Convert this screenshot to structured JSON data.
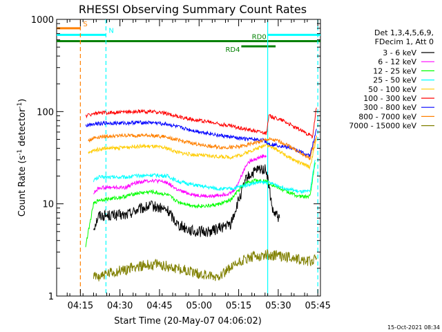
{
  "chart_data": {
    "type": "line",
    "title": "RHESSI Observing Summary Count Rates",
    "xlabel": "Start Time (20-May-07 04:06:02)",
    "ylabel_main": "Count Rate (s",
    "ylabel_sup1": "-1",
    "ylabel_mid": " detector",
    "ylabel_sup2": "-1",
    "ylabel_end": ")",
    "yscale": "log",
    "ylim": [
      1,
      1000
    ],
    "xlim_minutes": [
      0,
      100
    ],
    "y_ticks": [
      {
        "value": 1,
        "label": "1"
      },
      {
        "value": 10,
        "label": "10"
      },
      {
        "value": 100,
        "label": "100"
      },
      {
        "value": 1000,
        "label": "1000"
      }
    ],
    "x_ticks": [
      {
        "minute": 9,
        "label": "04:15"
      },
      {
        "minute": 24,
        "label": "04:30"
      },
      {
        "minute": 39,
        "label": "04:45"
      },
      {
        "minute": 54,
        "label": "05:00"
      },
      {
        "minute": 69,
        "label": "05:15"
      },
      {
        "minute": 84,
        "label": "05:30"
      },
      {
        "minute": 99,
        "label": "05:45"
      }
    ],
    "legend_header": [
      "Det 1,3,4,5,6,9,",
      "FDecim 1, Att 0"
    ],
    "legend_position": "right",
    "series": [
      {
        "name": "3 - 6 keV",
        "color": "#000000",
        "x": [
          14,
          16,
          22,
          26,
          30,
          36,
          42,
          46,
          52,
          58,
          62,
          66,
          68,
          70,
          72,
          74,
          76,
          78,
          79.5,
          82,
          84.5
        ],
        "y": [
          5.5,
          7.5,
          7.5,
          7.5,
          8.5,
          9.5,
          8.5,
          6,
          5,
          5,
          5.5,
          6,
          9,
          13,
          19,
          21,
          23,
          24,
          23,
          8,
          7
        ]
      },
      {
        "name": "6 - 12 keV",
        "color": "#ff00ff",
        "x": [
          14,
          16,
          22,
          26,
          30,
          36,
          42,
          46,
          52,
          58,
          62,
          66,
          68,
          70,
          72,
          74,
          76,
          78,
          79.5
        ],
        "y": [
          13,
          15,
          15,
          15,
          17,
          18,
          17,
          14,
          12.5,
          12,
          12.5,
          13,
          15,
          20,
          27,
          30,
          31,
          33,
          33
        ]
      },
      {
        "name": "12 - 25 keV",
        "color": "#00ff00",
        "x": [
          11,
          14,
          16,
          22,
          26,
          30,
          36,
          42,
          46,
          52,
          58,
          62,
          66,
          68,
          70,
          72,
          74,
          76,
          78,
          79.5,
          82,
          86,
          92,
          96,
          98
        ],
        "y": [
          3.5,
          10,
          11,
          11.5,
          12,
          13,
          13.5,
          12.5,
          10.5,
          9.5,
          9.5,
          10,
          11,
          13,
          15,
          17,
          17.5,
          18,
          18,
          17.5,
          16,
          14,
          12,
          12,
          28
        ]
      },
      {
        "name": "25 - 50 keV",
        "color": "#00ffff",
        "x": [
          14,
          16,
          22,
          26,
          30,
          36,
          42,
          46,
          52,
          58,
          62,
          66,
          68,
          70,
          72,
          74,
          76,
          78,
          79.5,
          82,
          86,
          92,
          96,
          98
        ],
        "y": [
          18,
          19.5,
          19.5,
          19.5,
          20,
          20.5,
          20,
          17.5,
          16,
          15,
          14.5,
          14.5,
          15,
          15.5,
          16,
          16.5,
          17,
          17,
          17,
          16.5,
          15,
          13.5,
          13.5,
          30
        ]
      },
      {
        "name": "50 - 100 keV",
        "color": "#ffcc00",
        "x": [
          12,
          14,
          18,
          22,
          26,
          30,
          36,
          42,
          46,
          52,
          58,
          62,
          66,
          70,
          74,
          78,
          79.5,
          80,
          84,
          88,
          92,
          96,
          98.5
        ],
        "y": [
          35,
          38,
          40,
          40,
          41,
          42,
          42,
          40,
          36,
          34,
          33,
          32.5,
          32,
          34,
          38,
          42,
          45,
          43,
          38,
          32,
          28,
          25,
          50
        ]
      },
      {
        "name": "100 - 300 keV",
        "color": "#ff0000",
        "x": [
          11,
          14,
          18,
          22,
          26,
          30,
          36,
          42,
          46,
          52,
          58,
          62,
          66,
          70,
          74,
          78,
          79.5,
          80.5,
          81.5,
          86,
          90,
          94,
          97,
          98.5
        ],
        "y": [
          90,
          95,
          97,
          98,
          99,
          100,
          100,
          95,
          88,
          82,
          77,
          73,
          70,
          66,
          63,
          60,
          58,
          90,
          88,
          80,
          68,
          60,
          53,
          110
        ]
      },
      {
        "name": "300 - 800 keV",
        "color": "#0000ff",
        "x": [
          11,
          14,
          18,
          22,
          26,
          30,
          36,
          42,
          46,
          52,
          58,
          62,
          66,
          70,
          74,
          78,
          79.5,
          80,
          84,
          88,
          92,
          96,
          98.5
        ],
        "y": [
          70,
          74,
          75,
          75,
          75,
          76,
          76,
          73,
          68,
          62,
          58,
          55,
          53,
          51,
          50,
          49,
          47,
          45,
          43,
          41,
          37,
          33,
          65
        ]
      },
      {
        "name": "800 - 7000 keV",
        "color": "#ff8000",
        "x": [
          12,
          14,
          18,
          22,
          26,
          30,
          36,
          42,
          46,
          52,
          58,
          62,
          66,
          70,
          74,
          78,
          80,
          84,
          88,
          92,
          96,
          98.5
        ],
        "y": [
          48,
          52,
          54,
          54,
          55,
          55,
          55,
          53,
          49,
          45,
          42,
          41,
          41,
          42,
          45,
          48,
          50,
          48,
          43,
          36,
          31,
          55
        ]
      },
      {
        "name": "7000 - 15000 keV",
        "color": "#808000",
        "x": [
          14,
          22,
          30,
          38,
          46,
          52,
          60,
          66,
          70,
          74,
          78,
          82,
          86,
          92,
          96,
          98.5
        ],
        "y": [
          1.6,
          1.8,
          2.1,
          2.2,
          2.0,
          1.8,
          1.6,
          2.0,
          2.4,
          2.6,
          2.8,
          2.8,
          2.7,
          2.5,
          2.4,
          2.6
        ]
      }
    ],
    "annotations": [
      {
        "label": "S",
        "color": "#ff8000",
        "kind": "span",
        "x": [
          0,
          9
        ],
        "y": 800
      },
      {
        "label": "N",
        "color": "#00ffff",
        "kind": "span",
        "x": [
          0,
          18.7
        ],
        "y": 680
      },
      {
        "label": "",
        "color": "#00ffff",
        "kind": "span",
        "x": [
          80,
          100
        ],
        "y": 680
      },
      {
        "label": "RD0",
        "color": "#008000",
        "kind": "span",
        "x": [
          0,
          100
        ],
        "y": 580
      },
      {
        "label": "RD4",
        "color": "#008000",
        "kind": "span",
        "x": [
          70,
          83
        ],
        "y": 510
      }
    ],
    "vertical_lines": [
      {
        "minute": 9,
        "color": "#ff8000",
        "style": "dashed"
      },
      {
        "minute": 18.7,
        "color": "#00ffff",
        "style": "dashed"
      },
      {
        "minute": 80,
        "color": "#00ffff",
        "style": "solid"
      },
      {
        "minute": 99,
        "color": "#00ffff",
        "style": "dashed"
      }
    ]
  },
  "footer_timestamp": "15-Oct-2021 08:34"
}
